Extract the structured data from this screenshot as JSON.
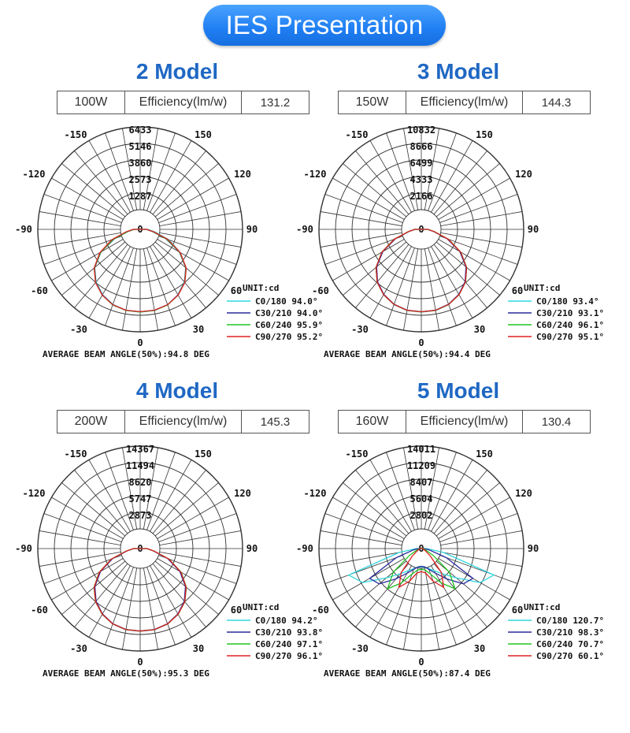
{
  "banner": {
    "title": "IES Presentation"
  },
  "panels": [
    {
      "title": "2 Model",
      "spec": {
        "power": "100W",
        "label": "Efficiency(lm/w)",
        "value": "131.2"
      },
      "chart_data": {
        "type": "polar",
        "radial_ticks": [
          "6433",
          "5146",
          "3860",
          "2573",
          "1287",
          "0"
        ],
        "rmax": 6433,
        "angle_labels": [
          "-150",
          "150",
          "-120",
          "120",
          "-90",
          "90",
          "-60",
          "60",
          "-30",
          "30",
          "0"
        ],
        "unit_label": "UNIT:cd",
        "legend": [
          {
            "label": "C0/180",
            "value": "94.0°",
            "color": "#33d6e0"
          },
          {
            "label": "C30/210",
            "value": "94.0°",
            "color": "#2a2a9c"
          },
          {
            "label": "C60/240",
            "value": "95.9°",
            "color": "#22c322"
          },
          {
            "label": "C90/270",
            "value": "95.2°",
            "color": "#e02020"
          }
        ],
        "series": [
          {
            "name": "C0/180",
            "color": "#33d6e0",
            "left": [
              6433,
              6400,
              6210,
              5860,
              5340,
              4620,
              3560,
              2280,
              1050,
              520
            ],
            "right": [
              6433,
              6410,
              6240,
              5880,
              5360,
              4650,
              3600,
              2400,
              1180,
              600
            ]
          },
          {
            "name": "C30/210",
            "color": "#2a2a9c",
            "left": [
              6400,
              6380,
              6230,
              5880,
              5370,
              4620,
              3520,
              2120,
              960,
              480
            ],
            "right": [
              6400,
              6380,
              6230,
              5880,
              5370,
              4620,
              3520,
              2120,
              960,
              480
            ]
          },
          {
            "name": "C60/240",
            "color": "#22c322",
            "left": [
              6420,
              6400,
              6250,
              5900,
              5390,
              4650,
              3560,
              2200,
              980,
              490
            ],
            "right": [
              6420,
              6400,
              6250,
              5900,
              5390,
              4650,
              3560,
              2200,
              980,
              490
            ]
          },
          {
            "name": "C90/270",
            "color": "#e02020",
            "left": [
              6400,
              6380,
              6240,
              5900,
              5400,
              4680,
              3620,
              2350,
              1120,
              560
            ],
            "right": [
              6400,
              6380,
              6240,
              5900,
              5400,
              4680,
              3600,
              2300,
              1050,
              520
            ]
          }
        ],
        "footer": "AVERAGE BEAM ANGLE(50%):94.8 DEG"
      }
    },
    {
      "title": "3 Model",
      "spec": {
        "power": "150W",
        "label": "Efficiency(lm/w)",
        "value": "144.3"
      },
      "chart_data": {
        "type": "polar",
        "radial_ticks": [
          "10832",
          "8666",
          "6499",
          "4333",
          "2166",
          "0"
        ],
        "rmax": 10832,
        "angle_labels": [
          "-150",
          "150",
          "-120",
          "120",
          "-90",
          "90",
          "-60",
          "60",
          "-30",
          "30",
          "0"
        ],
        "unit_label": "UNIT:cd",
        "legend": [
          {
            "label": "C0/180",
            "value": "93.4°",
            "color": "#33d6e0"
          },
          {
            "label": "C30/210",
            "value": "93.1°",
            "color": "#2a2a9c"
          },
          {
            "label": "C60/240",
            "value": "96.1°",
            "color": "#22c322"
          },
          {
            "label": "C90/270",
            "value": "95.1°",
            "color": "#e02020"
          }
        ],
        "series": [
          {
            "name": "C0/180",
            "color": "#33d6e0",
            "left": [
              10832,
              10790,
              10480,
              9880,
              8980,
              7700,
              5900,
              3700,
              1700,
              850
            ],
            "right": [
              10832,
              10790,
              10480,
              9880,
              8980,
              7700,
              5900,
              3700,
              1700,
              850
            ]
          },
          {
            "name": "C30/210",
            "color": "#2a2a9c",
            "left": [
              10780,
              10740,
              10430,
              9830,
              8930,
              7640,
              5820,
              3600,
              1650,
              820
            ],
            "right": [
              10780,
              10740,
              10430,
              9830,
              8930,
              7640,
              5820,
              3600,
              1650,
              820
            ]
          },
          {
            "name": "C60/240",
            "color": "#22c322",
            "left": [
              10800,
              10770,
              10470,
              9890,
              9020,
              7760,
              5980,
              3800,
              1760,
              880
            ],
            "right": [
              10800,
              10770,
              10470,
              9890,
              9020,
              7760,
              5980,
              3800,
              1760,
              880
            ]
          },
          {
            "name": "C90/270",
            "color": "#e02020",
            "left": [
              10790,
              10760,
              10460,
              9880,
              9000,
              7740,
              5960,
              3760,
              1740,
              870
            ],
            "right": [
              10790,
              10760,
              10460,
              9880,
              9000,
              7740,
              5960,
              3760,
              1740,
              870
            ]
          }
        ],
        "footer": "AVERAGE BEAM ANGLE(50%):94.4 DEG"
      }
    },
    {
      "title": "4 Model",
      "spec": {
        "power": "200W",
        "label": "Efficiency(lm/w)",
        "value": "145.3"
      },
      "chart_data": {
        "type": "polar",
        "radial_ticks": [
          "14367",
          "11494",
          "8620",
          "5747",
          "2873",
          "0"
        ],
        "rmax": 14367,
        "angle_labels": [
          "-150",
          "150",
          "-120",
          "120",
          "-90",
          "90",
          "-60",
          "60",
          "-30",
          "30",
          "0"
        ],
        "unit_label": "UNIT:cd",
        "legend": [
          {
            "label": "C0/180",
            "value": "94.2°",
            "color": "#33d6e0"
          },
          {
            "label": "C30/210",
            "value": "93.8°",
            "color": "#2a2a9c"
          },
          {
            "label": "C60/240",
            "value": "97.1°",
            "color": "#22c322"
          },
          {
            "label": "C90/270",
            "value": "96.1°",
            "color": "#e02020"
          }
        ],
        "series": [
          {
            "name": "C0/180",
            "color": "#33d6e0",
            "left": [
              14367,
              14330,
              13950,
              13170,
              12000,
              10350,
              8050,
              5150,
              2350,
              1150
            ],
            "right": [
              14367,
              14330,
              13950,
              13170,
              12000,
              10350,
              8050,
              5150,
              2350,
              1150
            ]
          },
          {
            "name": "C30/210",
            "color": "#2a2a9c",
            "left": [
              14300,
              14260,
              13880,
              13100,
              11930,
              10270,
              7960,
              5060,
              2300,
              1130
            ],
            "right": [
              14300,
              14260,
              13880,
              13100,
              11930,
              10270,
              7960,
              5060,
              2300,
              1130
            ]
          },
          {
            "name": "C60/240",
            "color": "#22c322",
            "left": [
              14330,
              14300,
              13940,
              13200,
              12080,
              10480,
              8230,
              5350,
              2450,
              1200
            ],
            "right": [
              14330,
              14300,
              13940,
              13200,
              12080,
              10480,
              8230,
              5350,
              2450,
              1200
            ]
          },
          {
            "name": "C90/270",
            "color": "#e02020",
            "left": [
              14320,
              14290,
              13920,
              13170,
              12040,
              10430,
              8170,
              5280,
              2420,
              1190
            ],
            "right": [
              14320,
              14290,
              13920,
              13170,
              12040,
              10430,
              8170,
              5280,
              2420,
              1190
            ]
          }
        ],
        "footer": "AVERAGE BEAM ANGLE(50%):95.3 DEG"
      }
    },
    {
      "title": "5 Model",
      "spec": {
        "power": "160W",
        "label": "Efficiency(lm/w)",
        "value": "130.4"
      },
      "chart_data": {
        "type": "polar",
        "radial_ticks": [
          "14011",
          "11209",
          "8407",
          "5604",
          "2802",
          "0"
        ],
        "rmax": 14011,
        "angle_labels": [
          "-150",
          "150",
          "-120",
          "120",
          "-90",
          "90",
          "-60",
          "60",
          "-30",
          "30",
          "0"
        ],
        "unit_label": "UNIT:cd",
        "legend": [
          {
            "label": "C0/180",
            "value": "120.7°",
            "color": "#33d6e0"
          },
          {
            "label": "C30/210",
            "value": "98.3°",
            "color": "#2a2a9c"
          },
          {
            "label": "C60/240",
            "value": "70.7°",
            "color": "#22c322"
          },
          {
            "label": "C90/270",
            "value": "60.1°",
            "color": "#e02020"
          }
        ],
        "series": [
          {
            "name": "C0/180",
            "color": "#33d6e0",
            "left": [
              3100,
              3200,
              3600,
              4300,
              5600,
              7700,
              11500,
              13100,
              3800,
              900
            ],
            "right": [
              3100,
              3200,
              3600,
              4300,
              5600,
              7700,
              11500,
              13100,
              3800,
              900
            ]
          },
          {
            "name": "C30/210",
            "color": "#2a2a9c",
            "left": [
              3000,
              3150,
              3750,
              4800,
              6700,
              9300,
              10100,
              4500,
              1400,
              500
            ],
            "right": [
              3000,
              3150,
              3750,
              4800,
              6700,
              9300,
              10100,
              4500,
              1400,
              500
            ]
          },
          {
            "name": "C60/240",
            "color": "#22c322",
            "left": [
              3500,
              3700,
              4600,
              6700,
              8900,
              6200,
              2300,
              900,
              400,
              250
            ],
            "right": [
              3500,
              3700,
              4600,
              6700,
              8900,
              6200,
              2300,
              900,
              400,
              250
            ]
          },
          {
            "name": "C90/270",
            "color": "#e02020",
            "left": [
              3900,
              4200,
              5900,
              7600,
              5300,
              2000,
              900,
              450,
              250,
              150
            ],
            "right": [
              3900,
              4200,
              5900,
              7600,
              5300,
              2000,
              900,
              450,
              250,
              150
            ]
          }
        ],
        "footer": "AVERAGE BEAM ANGLE(50%):87.4 DEG"
      }
    }
  ]
}
